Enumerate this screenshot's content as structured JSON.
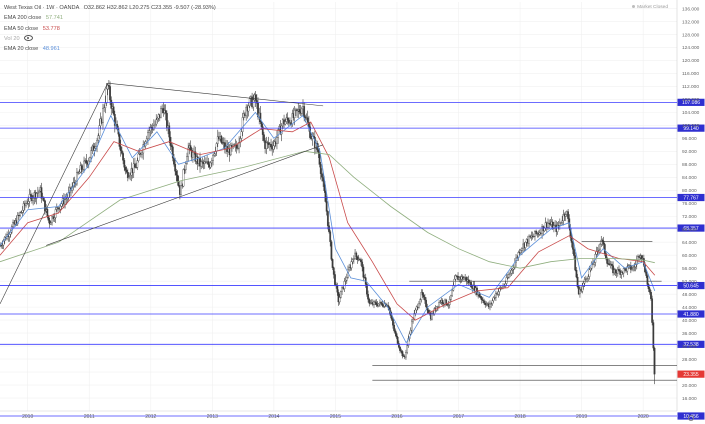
{
  "legend": {
    "title": "West Texas Oil · 1W · OANDA",
    "ohlc": "O32.862 H32.862 L20.275 C23.355 -9.507 (-28.93%)",
    "ema200_label": "EMA 200 close",
    "ema200_value": "57.741",
    "ema50_label": "EMA 50 close",
    "ema50_value": "53.778",
    "vol_label": "Vol 20",
    "ema20_label": "EMA 20 close",
    "ema20_value": "48.961"
  },
  "market_status": "Market Closed",
  "colors": {
    "up": "#3a3a3a",
    "down": "#3a3a3a",
    "ema20": "#5b8fd9",
    "ema50": "#c94a4a",
    "ema200": "#8fae7e",
    "level_line": "#3b3bff",
    "level_label_bg": "#2f2fd0",
    "current_label_bg": "#e53935",
    "trendline": "#3a3a3a",
    "grid": "#f0f0f0",
    "axis_text": "#666666"
  },
  "chart_data": {
    "type": "candlestick",
    "title": "West Texas Oil · 1W · OANDA",
    "xlabel": "",
    "ylabel": "",
    "x_range": [
      2009.55,
      2020.55
    ],
    "ylim": [
      12,
      138
    ],
    "grid": true,
    "y_ticks": [
      "136.000",
      "132.000",
      "128.000",
      "124.000",
      "120.000",
      "116.000",
      "112.000",
      "108.000",
      "104.000",
      "100.000",
      "96.000",
      "92.000",
      "88.000",
      "84.000",
      "80.000",
      "76.000",
      "72.000",
      "68.000",
      "64.000",
      "60.000",
      "56.000",
      "52.000",
      "48.000",
      "44.000",
      "40.000",
      "36.000",
      "32.000",
      "28.000",
      "24.000",
      "20.000",
      "16.000"
    ],
    "x_ticks": [
      {
        "label": "2010",
        "t": 2010.0
      },
      {
        "label": "2011",
        "t": 2011.0
      },
      {
        "label": "2012",
        "t": 2012.0
      },
      {
        "label": "2013",
        "t": 2013.0
      },
      {
        "label": "2014",
        "t": 2014.0
      },
      {
        "label": "2015",
        "t": 2015.0
      },
      {
        "label": "2016",
        "t": 2016.0
      },
      {
        "label": "2017",
        "t": 2017.0
      },
      {
        "label": "2018",
        "t": 2018.0
      },
      {
        "label": "2019",
        "t": 2019.0
      },
      {
        "label": "2020",
        "t": 2020.0
      }
    ],
    "horizontal_levels": [
      {
        "value": 107.086,
        "label": "107.086"
      },
      {
        "value": 99.14,
        "label": "99.140"
      },
      {
        "value": 77.767,
        "label": "77.767"
      },
      {
        "value": 68.357,
        "label": "68.357"
      },
      {
        "value": 50.645,
        "label": "50.645"
      },
      {
        "value": 41.88,
        "label": "41.880"
      },
      {
        "value": 32.538,
        "label": "32.538"
      },
      {
        "value": 10.456,
        "label": "10.456"
      }
    ],
    "current_price": {
      "value": 23.355,
      "label": "23.355"
    },
    "trendlines": [
      {
        "from": [
          2009.55,
          45.0
        ],
        "to": [
          2011.3,
          113.0
        ]
      },
      {
        "from": [
          2011.3,
          113.0
        ],
        "to": [
          2014.8,
          106.0
        ]
      },
      {
        "from": [
          2010.3,
          63.0
        ],
        "to": [
          2014.8,
          94.0
        ]
      },
      {
        "from": [
          2015.6,
          26.0
        ],
        "to": [
          2020.55,
          26.0
        ]
      },
      {
        "from": [
          2015.6,
          21.5
        ],
        "to": [
          2020.55,
          21.5
        ]
      },
      {
        "from": [
          2019.0,
          64.2
        ],
        "to": [
          2020.15,
          64.2
        ]
      },
      {
        "from": [
          2016.2,
          52.0
        ],
        "to": [
          2020.3,
          52.0
        ]
      }
    ],
    "price_path": [
      [
        2009.55,
        63
      ],
      [
        2009.8,
        70
      ],
      [
        2010.0,
        77
      ],
      [
        2010.2,
        80
      ],
      [
        2010.35,
        70
      ],
      [
        2010.5,
        75
      ],
      [
        2010.65,
        78
      ],
      [
        2010.85,
        86
      ],
      [
        2011.0,
        90
      ],
      [
        2011.15,
        97
      ],
      [
        2011.3,
        112
      ],
      [
        2011.45,
        98
      ],
      [
        2011.6,
        85
      ],
      [
        2011.75,
        87
      ],
      [
        2011.95,
        98
      ],
      [
        2012.1,
        101
      ],
      [
        2012.2,
        106
      ],
      [
        2012.35,
        92
      ],
      [
        2012.48,
        79
      ],
      [
        2012.6,
        93
      ],
      [
        2012.8,
        88
      ],
      [
        2012.95,
        88
      ],
      [
        2013.1,
        96
      ],
      [
        2013.25,
        92
      ],
      [
        2013.4,
        93
      ],
      [
        2013.55,
        106
      ],
      [
        2013.7,
        108
      ],
      [
        2013.85,
        94
      ],
      [
        2014.0,
        94
      ],
      [
        2014.15,
        101
      ],
      [
        2014.3,
        102
      ],
      [
        2014.47,
        106
      ],
      [
        2014.6,
        97
      ],
      [
        2014.72,
        92
      ],
      [
        2014.85,
        75
      ],
      [
        2014.96,
        55
      ],
      [
        2015.05,
        46
      ],
      [
        2015.12,
        50
      ],
      [
        2015.3,
        60
      ],
      [
        2015.4,
        59
      ],
      [
        2015.55,
        45
      ],
      [
        2015.7,
        45
      ],
      [
        2015.85,
        45
      ],
      [
        2015.95,
        37
      ],
      [
        2016.05,
        31
      ],
      [
        2016.12,
        28
      ],
      [
        2016.25,
        40
      ],
      [
        2016.4,
        48
      ],
      [
        2016.55,
        41
      ],
      [
        2016.7,
        46
      ],
      [
        2016.85,
        45
      ],
      [
        2016.95,
        53
      ],
      [
        2017.1,
        53
      ],
      [
        2017.25,
        50
      ],
      [
        2017.4,
        46
      ],
      [
        2017.5,
        44
      ],
      [
        2017.6,
        48
      ],
      [
        2017.75,
        51
      ],
      [
        2017.9,
        57
      ],
      [
        2018.0,
        62
      ],
      [
        2018.15,
        65
      ],
      [
        2018.3,
        67
      ],
      [
        2018.45,
        70
      ],
      [
        2018.6,
        68
      ],
      [
        2018.75,
        74
      ],
      [
        2018.85,
        63
      ],
      [
        2018.95,
        48
      ],
      [
        2019.05,
        52
      ],
      [
        2019.2,
        58
      ],
      [
        2019.32,
        65
      ],
      [
        2019.42,
        58
      ],
      [
        2019.52,
        55
      ],
      [
        2019.65,
        55
      ],
      [
        2019.75,
        56
      ],
      [
        2019.85,
        56
      ],
      [
        2019.95,
        61
      ],
      [
        2020.02,
        57
      ],
      [
        2020.08,
        50
      ],
      [
        2020.13,
        46
      ],
      [
        2020.17,
        30
      ],
      [
        2020.19,
        23.4
      ]
    ],
    "ema_paths": {
      "ema20": [
        [
          2009.55,
          63
        ],
        [
          2010.0,
          74
        ],
        [
          2010.5,
          75
        ],
        [
          2011.0,
          88
        ],
        [
          2011.35,
          103
        ],
        [
          2011.7,
          90
        ],
        [
          2012.1,
          98
        ],
        [
          2012.45,
          88
        ],
        [
          2012.8,
          90
        ],
        [
          2013.2,
          93
        ],
        [
          2013.7,
          104
        ],
        [
          2014.0,
          96
        ],
        [
          2014.47,
          103
        ],
        [
          2014.75,
          92
        ],
        [
          2015.0,
          62
        ],
        [
          2015.25,
          53
        ],
        [
          2015.5,
          52
        ],
        [
          2015.85,
          44
        ],
        [
          2016.15,
          33
        ],
        [
          2016.5,
          44
        ],
        [
          2017.0,
          51
        ],
        [
          2017.5,
          47
        ],
        [
          2018.0,
          60
        ],
        [
          2018.5,
          68
        ],
        [
          2018.8,
          70
        ],
        [
          2019.0,
          53
        ],
        [
          2019.35,
          62
        ],
        [
          2019.7,
          56
        ],
        [
          2020.0,
          58
        ],
        [
          2020.19,
          49
        ]
      ],
      "ema50": [
        [
          2009.55,
          60
        ],
        [
          2010.0,
          70
        ],
        [
          2010.5,
          73
        ],
        [
          2011.0,
          84
        ],
        [
          2011.4,
          95
        ],
        [
          2011.8,
          92
        ],
        [
          2012.3,
          95
        ],
        [
          2012.8,
          91
        ],
        [
          2013.3,
          93
        ],
        [
          2013.8,
          99
        ],
        [
          2014.3,
          98
        ],
        [
          2014.6,
          101
        ],
        [
          2014.9,
          90
        ],
        [
          2015.2,
          70
        ],
        [
          2015.6,
          58
        ],
        [
          2016.0,
          45
        ],
        [
          2016.3,
          40
        ],
        [
          2016.8,
          45
        ],
        [
          2017.3,
          49
        ],
        [
          2017.8,
          50
        ],
        [
          2018.3,
          61
        ],
        [
          2018.8,
          66
        ],
        [
          2019.1,
          62
        ],
        [
          2019.6,
          59
        ],
        [
          2020.0,
          58
        ],
        [
          2020.19,
          53.8
        ]
      ],
      "ema200": [
        [
          2009.55,
          58
        ],
        [
          2010.5,
          64
        ],
        [
          2011.5,
          77
        ],
        [
          2012.5,
          83
        ],
        [
          2013.5,
          87
        ],
        [
          2014.5,
          92
        ],
        [
          2014.9,
          91
        ],
        [
          2015.3,
          84
        ],
        [
          2015.9,
          75
        ],
        [
          2016.5,
          67
        ],
        [
          2017.0,
          62
        ],
        [
          2017.5,
          58
        ],
        [
          2018.0,
          56
        ],
        [
          2018.5,
          58
        ],
        [
          2019.0,
          59
        ],
        [
          2019.5,
          59
        ],
        [
          2020.0,
          58.5
        ],
        [
          2020.19,
          57.7
        ]
      ]
    }
  }
}
